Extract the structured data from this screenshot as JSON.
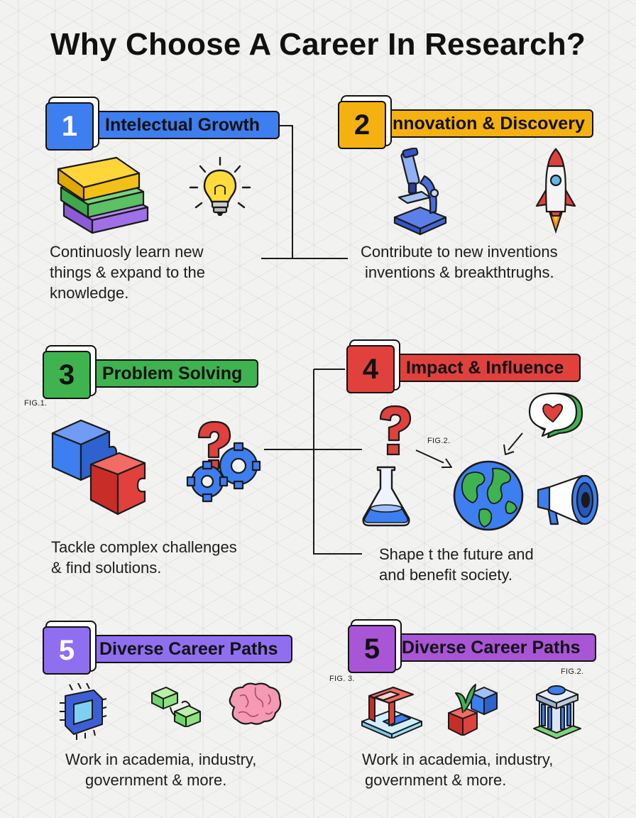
{
  "title": "Why Choose A Career In Research?",
  "colors": {
    "blue": "#3d7ef0",
    "yellow": "#f5b10f",
    "green": "#3fb34f",
    "red": "#e0413c",
    "violet": "#8f6ff0",
    "purple": "#a855d6"
  },
  "sections": [
    {
      "number": "1",
      "label": "Intelectual Growth",
      "color": "#3d7ef0",
      "desc_lines": [
        "Continuosly learn new",
        "things & expand to the",
        "knowledge."
      ],
      "icons": [
        "books-icon",
        "lightbulb-icon"
      ]
    },
    {
      "number": "2",
      "label": "Innovation & Discovery",
      "color": "#f5b10f",
      "desc_lines": [
        "Contribute to new inventions",
        "inventions & breakthtrughs."
      ],
      "icons": [
        "microscope-icon",
        "rocket-icon"
      ]
    },
    {
      "number": "3",
      "label": "Problem Solving",
      "color": "#3fb34f",
      "desc_lines": [
        "Tackle complex challenges",
        "& find solutions."
      ],
      "icons": [
        "puzzle-icon",
        "gears-question-icon"
      ]
    },
    {
      "number": "4",
      "label": "Impact & Influence",
      "color": "#e0413c",
      "desc_lines": [
        "Shape t the future and",
        "and benefit society."
      ],
      "icons": [
        "question-icon",
        "flask-icon",
        "globe-icon",
        "heart-bubble-icon",
        "megaphone-icon"
      ]
    },
    {
      "number": "5",
      "label": "Diverse Career Paths",
      "color": "#8f6ff0",
      "desc_lines": [
        "Work in academia, industry,",
        "government & more."
      ],
      "icons": [
        "chip-icon",
        "network-icon",
        "brain-icon"
      ]
    },
    {
      "number": "5",
      "label": "Diverse Career Paths",
      "color": "#a855d6",
      "desc_lines": [
        "Work in academia, industry,",
        "government & more."
      ],
      "icons": [
        "lab-station-icon",
        "plant-cube-icon",
        "government-building-icon"
      ]
    }
  ],
  "figure_labels": {
    "fig1": "FIG.1.",
    "fig2a": "FIG.2.",
    "fig3": "FIG. 3.",
    "fig2b": "FIG.2."
  }
}
